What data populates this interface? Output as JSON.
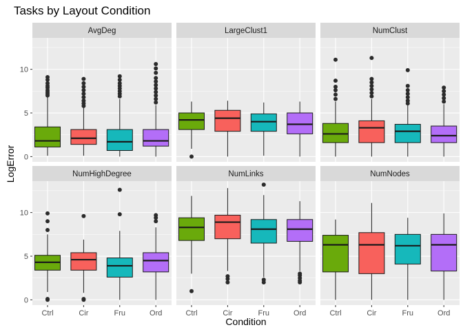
{
  "chart_data": {
    "type": "boxplot",
    "title": "Tasks by Layout Condition",
    "xlabel": "Condition",
    "ylabel": "LogError",
    "categories": [
      "Ctrl",
      "Cir",
      "Fru",
      "Ord"
    ],
    "yticks": [
      0,
      5,
      10
    ],
    "ylim": [
      -0.6,
      13.6
    ],
    "grid": true,
    "legend": "none",
    "colors": {
      "Ctrl": "#6aaa0b",
      "Cir": "#f8615c",
      "Fru": "#16b8bb",
      "Ord": "#b36ef8",
      "panel_bg": "#ebebeb",
      "strip_bg": "#d9d9d9",
      "grid": "#ffffff",
      "outline": "#1a1a1a"
    },
    "panels": [
      {
        "name": "AvgDeg",
        "boxes": [
          {
            "category": "Ctrl",
            "q1": 1.1,
            "median": 1.8,
            "q3": 3.4,
            "whisker_low": 0.1,
            "whisker_high": 6.8,
            "outliers": [
              7.0,
              7.2,
              7.4,
              7.6,
              7.9,
              8.1,
              8.4,
              8.8,
              9.1
            ]
          },
          {
            "category": "Cir",
            "q1": 1.4,
            "median": 2.1,
            "q3": 3.1,
            "whisker_low": 0.1,
            "whisker_high": 5.7,
            "outliers": [
              5.8,
              6.1,
              6.4,
              6.8,
              7.2,
              7.6,
              8.0,
              8.4,
              8.9
            ]
          },
          {
            "category": "Fru",
            "q1": 0.7,
            "median": 1.7,
            "q3": 3.1,
            "whisker_low": 0.0,
            "whisker_high": 6.6,
            "outliers": [
              6.9,
              7.2,
              7.5,
              7.8,
              8.1,
              8.4,
              8.8,
              9.2
            ]
          },
          {
            "category": "Ord",
            "q1": 1.2,
            "median": 1.8,
            "q3": 3.1,
            "whisker_low": 0.0,
            "whisker_high": 5.9,
            "outliers": [
              6.2,
              6.6,
              7.0,
              7.4,
              7.8,
              8.2,
              8.6,
              9.0,
              9.6,
              10.1,
              10.6
            ]
          }
        ]
      },
      {
        "name": "LargeClust1",
        "boxes": [
          {
            "category": "Ctrl",
            "q1": 3.1,
            "median": 4.2,
            "q3": 5.0,
            "whisker_low": 0.9,
            "whisker_high": 6.3,
            "outliers": [
              0.0
            ]
          },
          {
            "category": "Cir",
            "q1": 2.9,
            "median": 4.4,
            "q3": 5.3,
            "whisker_low": 0.0,
            "whisker_high": 6.4,
            "outliers": []
          },
          {
            "category": "Fru",
            "q1": 2.9,
            "median": 4.0,
            "q3": 4.9,
            "whisker_low": 0.1,
            "whisker_high": 6.2,
            "outliers": []
          },
          {
            "category": "Ord",
            "q1": 2.6,
            "median": 3.7,
            "q3": 5.0,
            "whisker_low": 0.0,
            "whisker_high": 6.3,
            "outliers": []
          }
        ]
      },
      {
        "name": "NumClust",
        "boxes": [
          {
            "category": "Ctrl",
            "q1": 1.6,
            "median": 2.6,
            "q3": 3.8,
            "whisker_low": 0.0,
            "whisker_high": 6.3,
            "outliers": [
              6.6,
              7.1,
              7.6,
              8.0,
              8.7,
              11.1
            ]
          },
          {
            "category": "Cir",
            "q1": 1.6,
            "median": 3.3,
            "q3": 4.1,
            "whisker_low": 0.0,
            "whisker_high": 6.6,
            "outliers": [
              6.9,
              7.3,
              7.7,
              8.1,
              8.5,
              8.9,
              11.3
            ]
          },
          {
            "category": "Fru",
            "q1": 1.6,
            "median": 2.9,
            "q3": 3.7,
            "whisker_low": 0.0,
            "whisker_high": 5.9,
            "outliers": [
              6.1,
              6.4,
              6.8,
              7.2,
              7.6,
              8.1,
              9.9
            ]
          },
          {
            "category": "Ord",
            "q1": 1.6,
            "median": 2.4,
            "q3": 3.5,
            "whisker_low": 0.0,
            "whisker_high": 6.0,
            "outliers": [
              6.3,
              6.7,
              7.1,
              7.5,
              7.9
            ]
          }
        ]
      },
      {
        "name": "NumHighDegree",
        "boxes": [
          {
            "category": "Ctrl",
            "q1": 3.4,
            "median": 4.3,
            "q3": 5.1,
            "whisker_low": 0.9,
            "whisker_high": 7.5,
            "outliers": [
              0.0,
              0.1,
              8.0,
              9.0,
              9.9
            ]
          },
          {
            "category": "Cir",
            "q1": 3.4,
            "median": 4.6,
            "q3": 5.4,
            "whisker_low": 0.8,
            "whisker_high": 6.9,
            "outliers": [
              0.0,
              0.1,
              9.6
            ]
          },
          {
            "category": "Fru",
            "q1": 2.6,
            "median": 3.9,
            "q3": 4.8,
            "whisker_low": 0.0,
            "whisker_high": 7.9,
            "outliers": [
              9.8,
              12.6
            ]
          },
          {
            "category": "Ord",
            "q1": 3.2,
            "median": 4.5,
            "q3": 5.4,
            "whisker_low": 0.0,
            "whisker_high": 8.3,
            "outliers": [
              9.0,
              9.4,
              9.7
            ]
          }
        ]
      },
      {
        "name": "NumLinks",
        "boxes": [
          {
            "category": "Ctrl",
            "q1": 6.8,
            "median": 8.3,
            "q3": 9.4,
            "whisker_low": 3.0,
            "whisker_high": 11.9,
            "outliers": [
              1.0
            ]
          },
          {
            "category": "Cir",
            "q1": 7.0,
            "median": 8.9,
            "q3": 9.7,
            "whisker_low": 3.3,
            "whisker_high": 12.8,
            "outliers": [
              2.0,
              2.4,
              2.7
            ]
          },
          {
            "category": "Fru",
            "q1": 6.5,
            "median": 8.1,
            "q3": 9.2,
            "whisker_low": 2.6,
            "whisker_high": 12.0,
            "outliers": [
              2.0,
              2.3,
              13.2
            ]
          },
          {
            "category": "Ord",
            "q1": 6.7,
            "median": 8.1,
            "q3": 9.2,
            "whisker_low": 3.3,
            "whisker_high": 11.3,
            "outliers": [
              2.0,
              2.2,
              2.5,
              2.8,
              3.0
            ]
          }
        ]
      },
      {
        "name": "NumNodes",
        "boxes": [
          {
            "category": "Ctrl",
            "q1": 3.2,
            "median": 6.3,
            "q3": 7.4,
            "whisker_low": 0.0,
            "whisker_high": 9.2,
            "outliers": []
          },
          {
            "category": "Cir",
            "q1": 3.0,
            "median": 6.3,
            "q3": 7.7,
            "whisker_low": 0.0,
            "whisker_high": 11.1,
            "outliers": []
          },
          {
            "category": "Fru",
            "q1": 4.1,
            "median": 6.2,
            "q3": 7.5,
            "whisker_low": 0.0,
            "whisker_high": 9.4,
            "outliers": []
          },
          {
            "category": "Ord",
            "q1": 3.3,
            "median": 6.3,
            "q3": 7.5,
            "whisker_low": 0.0,
            "whisker_high": 9.9,
            "outliers": []
          }
        ]
      }
    ]
  }
}
